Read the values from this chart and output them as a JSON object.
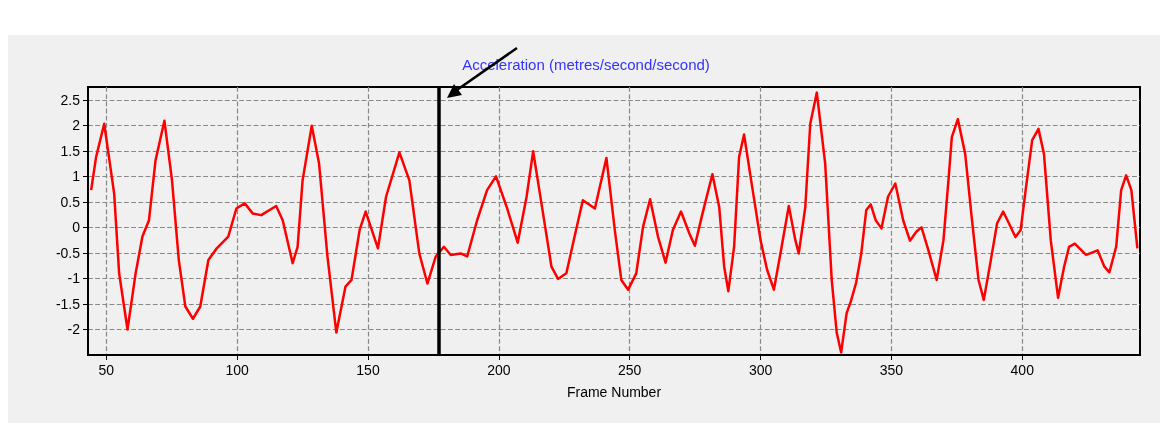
{
  "chart_data": {
    "type": "line",
    "title": "Acceleration (metres/second/second)",
    "xlabel": "Frame Number",
    "xlim": [
      43,
      445
    ],
    "xticks": [
      50,
      100,
      150,
      200,
      250,
      300,
      350,
      400
    ],
    "ylim": [
      -2.5,
      2.75
    ],
    "yticks": [
      -2,
      -1.5,
      -1,
      -0.5,
      0,
      0.5,
      1,
      1.5,
      2,
      2.5
    ],
    "grid": true,
    "marker": "none",
    "line_style": "solid",
    "ref_lines": [
      {
        "axis": "x",
        "value": 177,
        "color": "#000000"
      }
    ],
    "series": [
      {
        "color": "#ff0000",
        "x": [
          44.2,
          46.1,
          49.2,
          53,
          54.9,
          58.1,
          61.2,
          63.8,
          66.3,
          68.8,
          72.2,
          75.1,
          77.7,
          80.2,
          83.1,
          85.9,
          89,
          92.2,
          96.6,
          99.7,
          102.9,
          106,
          109.2,
          114.9,
          117.4,
          121.2,
          123.1,
          125,
          128.5,
          131.3,
          134.5,
          137.9,
          141.4,
          143.7,
          146.8,
          149.1,
          153.8,
          156.9,
          162,
          165.8,
          169.6,
          172.7,
          175.9,
          179,
          181.6,
          185.4,
          187.9,
          191.7,
          195.5,
          198.9,
          203,
          207.2,
          210.6,
          213.1,
          216.9,
          220.1,
          222.6,
          225.8,
          229.5,
          232.1,
          236.7,
          241.1,
          244.3,
          246.8,
          249.4,
          252.5,
          255.1,
          257.8,
          260.8,
          263.7,
          266.5,
          269.6,
          272.8,
          274.9,
          277.8,
          281.6,
          284.2,
          286.1,
          287.7,
          289.9,
          291.8,
          293.7,
          296.2,
          300,
          302.5,
          305.1,
          307.6,
          310.8,
          313.3,
          314.6,
          317.1,
          319,
          321.5,
          324.7,
          327.2,
          329.1,
          330.8,
          332.9,
          334.5,
          336.5,
          338.5,
          340.4,
          342.1,
          344,
          346.2,
          348.7,
          351.5,
          354.5,
          357.1,
          359.6,
          361.5,
          364.1,
          367.3,
          369.9,
          371.8,
          373.1,
          375.4,
          378.2,
          380.8,
          383.3,
          385.3,
          387.8,
          390.4,
          392.7,
          394.9,
          397.4,
          399.4,
          401.3,
          403.8,
          406.2,
          408.3,
          410.9,
          413.7,
          416,
          417.9,
          420.1,
          424.4,
          428.8,
          431.4,
          433.3,
          435.9,
          437.8,
          439.7,
          441.7,
          444
        ],
        "values": [
          0.73,
          1.38,
          2.03,
          0.66,
          -0.9,
          -2.0,
          -0.9,
          -0.18,
          0.14,
          1.31,
          2.09,
          0.92,
          -0.64,
          -1.55,
          -1.79,
          -1.55,
          -0.64,
          -0.41,
          -0.18,
          0.37,
          0.47,
          0.27,
          0.24,
          0.42,
          0.14,
          -0.7,
          -0.38,
          0.92,
          1.99,
          1.25,
          -0.57,
          -2.06,
          -1.16,
          -1.03,
          -0.05,
          0.31,
          -0.41,
          0.6,
          1.47,
          0.92,
          -0.51,
          -1.1,
          -0.57,
          -0.38,
          -0.54,
          -0.51,
          -0.57,
          0.14,
          0.73,
          1.0,
          0.4,
          -0.3,
          0.6,
          1.49,
          0.27,
          -0.77,
          -1.01,
          -0.9,
          -0.05,
          0.53,
          0.37,
          1.36,
          -0.05,
          -1.03,
          -1.22,
          -0.9,
          0.01,
          0.55,
          -0.18,
          -0.69,
          -0.05,
          0.31,
          -0.12,
          -0.36,
          0.27,
          1.04,
          0.4,
          -0.77,
          -1.25,
          -0.38,
          1.38,
          1.82,
          0.99,
          -0.25,
          -0.83,
          -1.22,
          -0.51,
          0.42,
          -0.25,
          -0.51,
          0.4,
          2.03,
          2.64,
          1.25,
          -1.03,
          -2.06,
          -2.45,
          -1.68,
          -1.45,
          -1.09,
          -0.51,
          0.34,
          0.45,
          0.14,
          -0.02,
          0.6,
          0.86,
          0.14,
          -0.26,
          -0.08,
          0,
          -0.44,
          -1.03,
          -0.25,
          0.92,
          1.77,
          2.12,
          1.44,
          0.14,
          -1.03,
          -1.42,
          -0.7,
          0.08,
          0.31,
          0.08,
          -0.19,
          -0.05,
          0.73,
          1.71,
          1.93,
          1.44,
          -0.25,
          -1.38,
          -0.77,
          -0.38,
          -0.32,
          -0.54,
          -0.45,
          -0.77,
          -0.88,
          -0.38,
          0.73,
          1.02,
          0.73,
          -0.41
        ]
      }
    ]
  }
}
